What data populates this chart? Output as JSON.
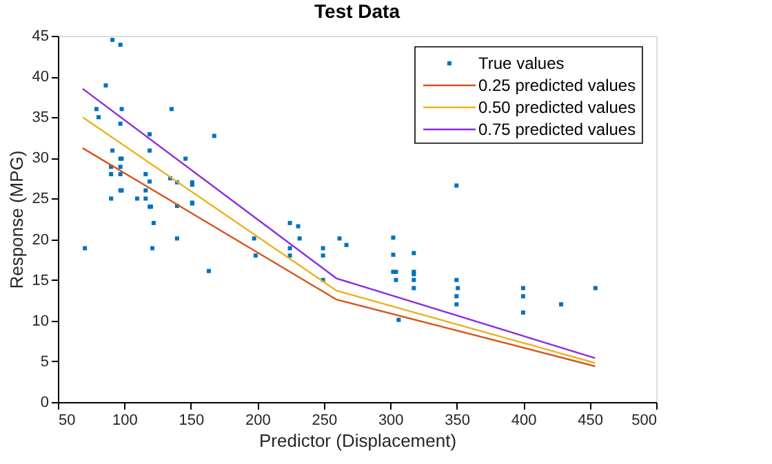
{
  "chart_data": {
    "type": "scatter",
    "title": "Test Data",
    "xlabel": "Predictor (Displacement)",
    "ylabel": "Response (MPG)",
    "xlim": [
      50,
      500
    ],
    "xticks": [
      50,
      100,
      150,
      200,
      250,
      300,
      350,
      400,
      450,
      500
    ],
    "ylim": [
      0,
      45
    ],
    "yticks": [
      0,
      5,
      10,
      15,
      20,
      25,
      30,
      35,
      40,
      45
    ],
    "grid": false,
    "legend": "top right",
    "series": [
      {
        "name": "True values",
        "marker": "square",
        "color": "#0072bd",
        "x": [
          91,
          97,
          86,
          79,
          98,
          135.5,
          80.6,
          97,
          119,
          167.6,
          91,
          119,
          97,
          98,
          146,
          90,
          97,
          90,
          97,
          116,
          119,
          134.5,
          139.6,
          151,
          151,
          97,
          98,
          116,
          90,
          109.6,
          116,
          119,
          120,
          139.6,
          151,
          151,
          122,
          70.3,
          121,
          139.6,
          163.5,
          197.6,
          198.7,
          224.5,
          230.7,
          231.8,
          224.5,
          224.5,
          249.4,
          249.4,
          249.4,
          261.8,
          267,
          302.2,
          302.2,
          302.2,
          304.3,
          304.3,
          306.3,
          317.7,
          317.7,
          317.7,
          317.7,
          317.7,
          349.8,
          349.8,
          350.8,
          349.8,
          349.8,
          399.9,
          399.9,
          399.9,
          428.5,
          454.3
        ],
        "values": [
          44.5,
          43.9,
          38.9,
          36.0,
          36.0,
          36.0,
          35.0,
          34.2,
          32.9,
          32.7,
          30.9,
          30.9,
          29.9,
          29.9,
          29.9,
          28.9,
          28.9,
          28.0,
          28.0,
          28.0,
          27.1,
          27.5,
          27.0,
          27.0,
          26.7,
          26.0,
          26.0,
          26.0,
          25.0,
          25.0,
          25.0,
          24.0,
          24.0,
          24.1,
          24.5,
          24.4,
          22.0,
          18.9,
          18.9,
          20.1,
          16.1,
          20.1,
          18.0,
          22.0,
          21.6,
          20.1,
          18.9,
          18.0,
          18.9,
          18.0,
          15.0,
          20.1,
          19.3,
          20.2,
          18.1,
          16.0,
          16.0,
          15.0,
          10.1,
          18.3,
          16.0,
          15.7,
          15.0,
          14.0,
          26.6,
          15.0,
          14.0,
          13.0,
          12.0,
          14.0,
          13.0,
          11.0,
          12.0,
          14.0
        ]
      },
      {
        "name": "0.25 predicted values",
        "type": "line",
        "color": "#d95319",
        "x": [
          68.6,
          259.4,
          454
        ],
        "values": [
          31.2,
          12.6,
          4.4
        ]
      },
      {
        "name": "0.50 predicted values",
        "type": "line",
        "color": "#edb120",
        "x": [
          68.6,
          259.4,
          454
        ],
        "values": [
          35.0,
          13.7,
          4.8
        ]
      },
      {
        "name": "0.75 predicted values",
        "type": "line",
        "color": "#8b2be2",
        "x": [
          68.6,
          259.4,
          454
        ],
        "values": [
          38.5,
          15.2,
          5.4
        ]
      }
    ]
  }
}
